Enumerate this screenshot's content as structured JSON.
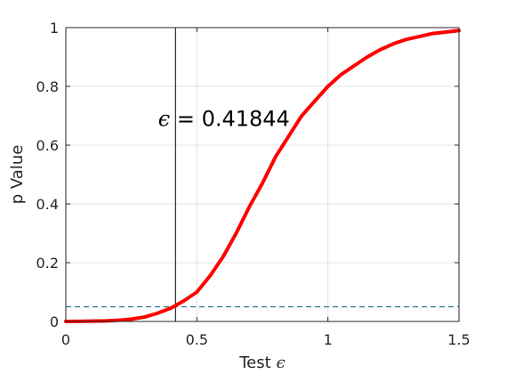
{
  "chart_data": {
    "type": "line",
    "title": "",
    "xlabel": "Test",
    "xlabel_symbol": "ϵ",
    "ylabel": "p Value",
    "xlim": [
      0,
      1.5
    ],
    "ylim": [
      0,
      1
    ],
    "xticks": [
      0,
      0.5,
      1,
      1.5
    ],
    "xtick_labels": [
      "0",
      "0.5",
      "1",
      "1.5"
    ],
    "yticks": [
      0,
      0.2,
      0.4,
      0.6,
      0.8,
      1
    ],
    "ytick_labels": [
      "0",
      "0.2",
      "0.4",
      "0.6",
      "0.8",
      "1"
    ],
    "grid": true,
    "series": [
      {
        "color": "#ff0000",
        "x": [
          0,
          0.05,
          0.1,
          0.15,
          0.2,
          0.25,
          0.3,
          0.35,
          0.4,
          0.42,
          0.45,
          0.5,
          0.55,
          0.6,
          0.65,
          0.7,
          0.75,
          0.8,
          0.85,
          0.9,
          0.95,
          1.0,
          1.05,
          1.1,
          1.15,
          1.2,
          1.25,
          1.3,
          1.35,
          1.4,
          1.45,
          1.5
        ],
        "y": [
          0,
          0.0005,
          0.001,
          0.002,
          0.004,
          0.008,
          0.015,
          0.028,
          0.045,
          0.055,
          0.07,
          0.1,
          0.155,
          0.22,
          0.3,
          0.39,
          0.47,
          0.56,
          0.63,
          0.7,
          0.75,
          0.8,
          0.84,
          0.87,
          0.9,
          0.925,
          0.945,
          0.96,
          0.97,
          0.98,
          0.985,
          0.99
        ]
      }
    ],
    "reference_lines": {
      "vertical_x": 0.41844,
      "vertical_color": "#000000",
      "horizontal_y": 0.05,
      "horizontal_color": "#2a6f8f",
      "horizontal_style": "dashed"
    },
    "annotation": {
      "symbol": "ϵ",
      "text": " = 0.41844",
      "x": 0.42,
      "y": 0.69
    }
  }
}
